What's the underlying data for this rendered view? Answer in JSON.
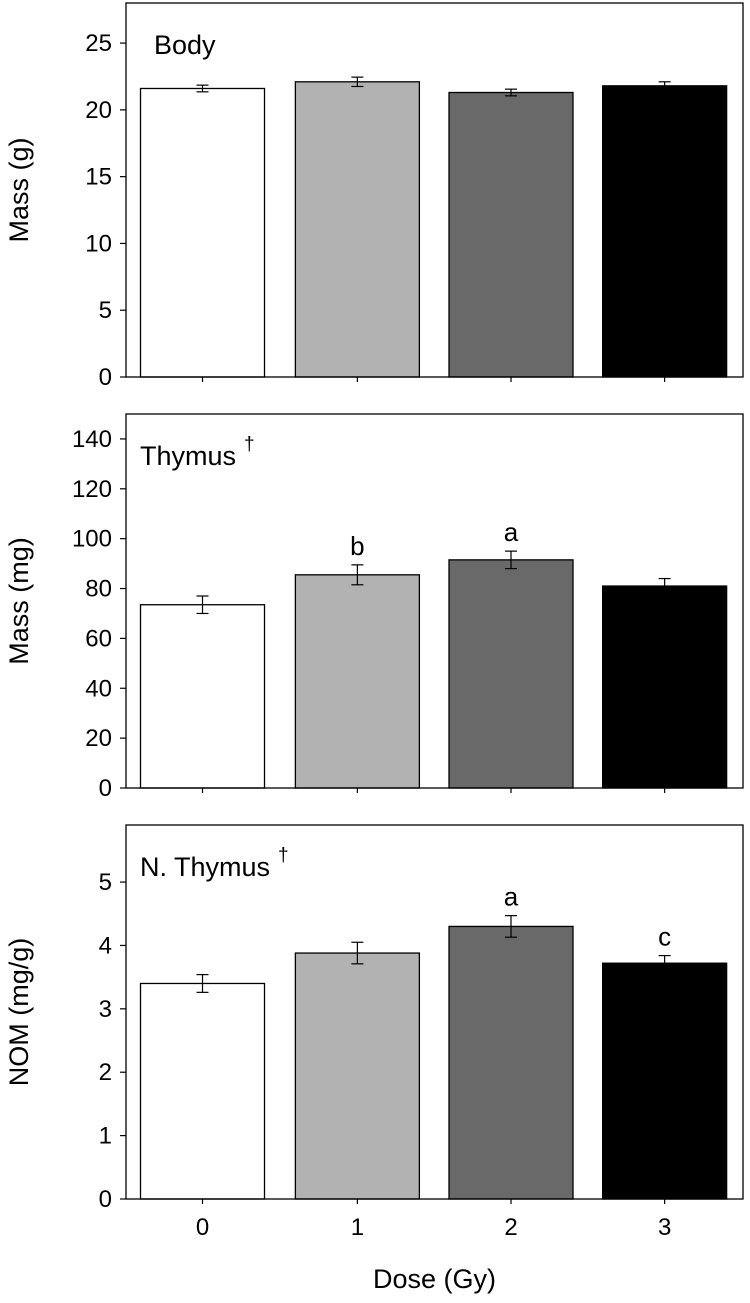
{
  "chart_data": [
    {
      "type": "bar",
      "title": "Body",
      "title_mark": "",
      "ylabel": "Mass (g)",
      "categories": [
        "0",
        "1",
        "2",
        "3"
      ],
      "values": [
        21.6,
        22.1,
        21.3,
        21.8
      ],
      "errors": [
        0.25,
        0.35,
        0.25,
        0.3
      ],
      "significance": [
        "",
        "",
        "",
        ""
      ],
      "ylim": [
        0,
        28
      ],
      "yticks": [
        0,
        5,
        10,
        15,
        20,
        25
      ],
      "show_xticklabels": false
    },
    {
      "type": "bar",
      "title": "Thymus",
      "title_mark": "†",
      "ylabel": "Mass (mg)",
      "categories": [
        "0",
        "1",
        "2",
        "3"
      ],
      "values": [
        73.5,
        85.5,
        91.5,
        81.0
      ],
      "errors": [
        3.5,
        4.0,
        3.5,
        3.0
      ],
      "significance": [
        "",
        "b",
        "a",
        ""
      ],
      "ylim": [
        0,
        150
      ],
      "yticks": [
        0,
        20,
        40,
        60,
        80,
        100,
        120,
        140
      ],
      "show_xticklabels": false
    },
    {
      "type": "bar",
      "title": "N. Thymus",
      "title_mark": "†",
      "ylabel": "NOM (mg/g)",
      "xlabel": "Dose (Gy)",
      "categories": [
        "0",
        "1",
        "2",
        "3"
      ],
      "values": [
        3.4,
        3.88,
        4.3,
        3.72
      ],
      "errors": [
        0.14,
        0.17,
        0.17,
        0.12
      ],
      "significance": [
        "",
        "",
        "a",
        "c"
      ],
      "ylim": [
        0,
        5.9
      ],
      "yticks": [
        0,
        1,
        2,
        3,
        4,
        5
      ],
      "show_xticklabels": true
    }
  ],
  "colors": {
    "bars": [
      "#ffffff",
      "#b2b2b2",
      "#696969",
      "#000000"
    ],
    "outline": "#000000"
  }
}
